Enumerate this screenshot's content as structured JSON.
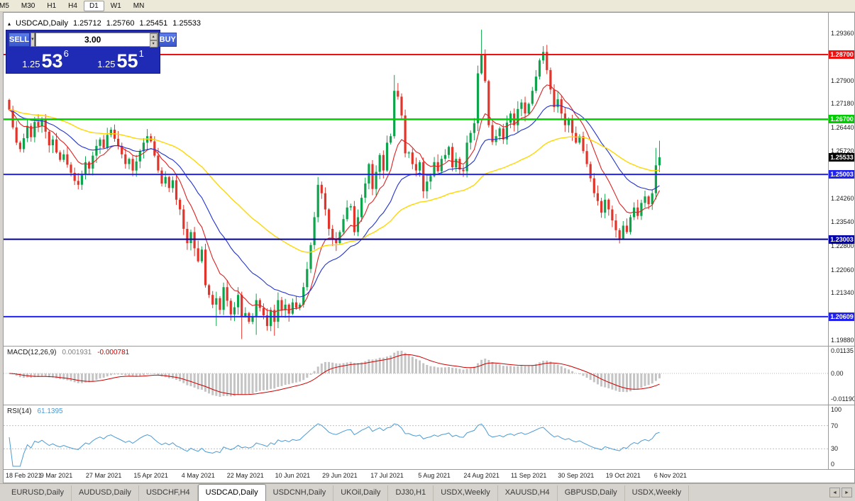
{
  "window": {
    "marker": "▴",
    "symbol": "USDCAD,Daily",
    "ohlc": {
      "open": "1.25712",
      "high": "1.25760",
      "low": "1.25451",
      "close": "1.25533"
    }
  },
  "toolbar": {
    "timeframes": [
      "M5",
      "M30",
      "H1",
      "H4",
      "D1",
      "W1",
      "MN"
    ],
    "active": "D1"
  },
  "trade_panel": {
    "sell_label": "SELL",
    "buy_label": "BUY",
    "volume": "3.00",
    "bid": {
      "prefix": "1.25",
      "big": "53",
      "sup": "6"
    },
    "ask": {
      "prefix": "1.25",
      "big": "55",
      "sup": "1"
    },
    "dropdown_icon": "▾",
    "spinner_up_icon": "▴",
    "spinner_down_icon": "▾"
  },
  "price_axis": {
    "labels": [
      {
        "text": "1.29360",
        "price": 1.2936
      },
      {
        "text": "1.27900",
        "price": 1.279
      },
      {
        "text": "1.27180",
        "price": 1.2718
      },
      {
        "text": "1.26440",
        "price": 1.2644
      },
      {
        "text": "1.25720",
        "price": 1.2572
      },
      {
        "text": "1.24260",
        "price": 1.2426
      },
      {
        "text": "1.23540",
        "price": 1.2354
      },
      {
        "text": "1.22800",
        "price": 1.228
      },
      {
        "text": "1.22060",
        "price": 1.2206
      },
      {
        "text": "1.21340",
        "price": 1.2134
      },
      {
        "text": "1.19880",
        "price": 1.1988
      }
    ]
  },
  "levels": [
    {
      "price": 1.287,
      "label": "1.28700",
      "color": "#ee1111",
      "width": 2
    },
    {
      "price": 1.267,
      "label": "1.26700",
      "color": "#00cc00",
      "width": 2.5
    },
    {
      "price": 1.25,
      "label": "1.25003",
      "color": "#2222ee",
      "width": 2
    },
    {
      "price": 1.23,
      "label": "1.23003",
      "color": "#0000aa",
      "width": 2
    },
    {
      "price": 1.20609,
      "label": "1.20609",
      "color": "#2222ee",
      "width": 2
    }
  ],
  "current_price": {
    "value": 1.25533,
    "label": "1.25533",
    "badge_color": "#000000"
  },
  "indicators": {
    "macd": {
      "name": "MACD(12,26,9)",
      "value1": "0.001931",
      "value2": "-0.000781",
      "axis": [
        "0.01135",
        "0.00",
        "-0.01190"
      ],
      "fast": 12,
      "slow": 26,
      "signal_period": 9,
      "histogram_color": "#c4c4c4",
      "signal_color": "#cc0000"
    },
    "rsi": {
      "name": "RSI(14)",
      "value": "61.1395",
      "axis": [
        "100",
        "70",
        "30",
        "0"
      ],
      "period": 14,
      "levels": [
        70,
        30
      ],
      "line_color": "#4a9bd4"
    }
  },
  "chart_data": {
    "type": "candlestick",
    "symbol": "USDCAD",
    "timeframe": "Daily",
    "ylim": [
      1.1971,
      1.2999
    ],
    "first_open": 1.273,
    "closes": [
      1.27,
      1.2645,
      1.2598,
      1.2578,
      1.2612,
      1.265,
      1.2615,
      1.2662,
      1.2648,
      1.2668,
      1.2632,
      1.259,
      1.2608,
      1.2568,
      1.2545,
      1.2562,
      1.253,
      1.2505,
      1.248,
      1.2468,
      1.2502,
      1.2538,
      1.2518,
      1.2558,
      1.2588,
      1.2608,
      1.2582,
      1.2622,
      1.2638,
      1.261,
      1.2588,
      1.2562,
      1.2532,
      1.2548,
      1.2512,
      1.254,
      1.2572,
      1.2598,
      1.2618,
      1.2602,
      1.2558,
      1.2512,
      1.2472,
      1.2492,
      1.2458,
      1.2482,
      1.2422,
      1.2392,
      1.2332,
      1.2288,
      1.2322,
      1.2272,
      1.2232,
      1.2268,
      1.2158,
      1.2128,
      1.2098,
      1.2118,
      1.2082,
      1.2152,
      1.211,
      1.2068,
      1.209,
      1.2128,
      1.2062,
      1.2072,
      1.2045,
      1.206,
      1.2112,
      1.2088,
      1.2065,
      1.2032,
      1.2082,
      1.2045,
      1.2112,
      1.208,
      1.2098,
      1.207,
      1.2105,
      1.2088,
      1.2098,
      1.2152,
      1.2208,
      1.2282,
      1.2368,
      1.2468,
      1.2442,
      1.2392,
      1.2332,
      1.2302,
      1.2288,
      1.2322,
      1.2362,
      1.2398,
      1.2402,
      1.2322,
      1.2368,
      1.2428,
      1.2472,
      1.2532,
      1.2455,
      1.2508,
      1.256,
      1.2512,
      1.2598,
      1.2618,
      1.2758,
      1.274,
      1.2682,
      1.2565,
      1.2568,
      1.2532,
      1.2512,
      1.2538,
      1.2448,
      1.2478,
      1.2495,
      1.2538,
      1.251,
      1.2548,
      1.256,
      1.2585,
      1.2522,
      1.2548,
      1.2515,
      1.251,
      1.2598,
      1.2628,
      1.2658,
      1.2812,
      1.2868,
      1.2788,
      1.2652,
      1.26,
      1.2618,
      1.2642,
      1.2608,
      1.266,
      1.2688,
      1.2652,
      1.2702,
      1.2722,
      1.2688,
      1.2718,
      1.2758,
      1.2802,
      1.2852,
      1.2878,
      1.2822,
      1.2762,
      1.2708,
      1.2732,
      1.2688,
      1.2652,
      1.2672,
      1.2628,
      1.2598,
      1.2618,
      1.2572,
      1.2532,
      1.2488,
      1.2442,
      1.2418,
      1.2382,
      1.2422,
      1.2392,
      1.2358,
      1.2328,
      1.2302,
      1.2342,
      1.2322,
      1.2368,
      1.2398,
      1.2372,
      1.2412,
      1.2432,
      1.2408,
      1.2442,
      1.2528,
      1.2553
    ],
    "wick_overrides": {
      "57": {
        "low": 1.2032
      },
      "64": {
        "low": 1.1992
      },
      "68": {
        "low": 1.2005
      },
      "73": {
        "low": 1.2002
      },
      "106": {
        "high": 1.2807
      },
      "130": {
        "high": 1.2947
      },
      "147": {
        "high": 1.2896
      },
      "168": {
        "low": 1.2287
      },
      "178": {
        "high": 1.2582
      },
      "179": {
        "high": 1.2604
      }
    },
    "x_labels": [
      {
        "text": "18 Feb 2021",
        "index": 0
      },
      {
        "text": "9 Mar 2021",
        "index": 13
      },
      {
        "text": "27 Mar 2021",
        "index": 26
      },
      {
        "text": "15 Apr 2021",
        "index": 39
      },
      {
        "text": "4 May 2021",
        "index": 52
      },
      {
        "text": "22 May 2021",
        "index": 65
      },
      {
        "text": "10 Jun 2021",
        "index": 78
      },
      {
        "text": "29 Jun 2021",
        "index": 91
      },
      {
        "text": "17 Jul 2021",
        "index": 104
      },
      {
        "text": "5 Aug 2021",
        "index": 117
      },
      {
        "text": "24 Aug 2021",
        "index": 130
      },
      {
        "text": "11 Sep 2021",
        "index": 143
      },
      {
        "text": "30 Sep 2021",
        "index": 156
      },
      {
        "text": "19 Oct 2021",
        "index": 169
      },
      {
        "text": "6 Nov 2021",
        "index": 182
      }
    ],
    "colors": {
      "up": "#0ea44c",
      "down": "#e0352b"
    },
    "moving_averages": [
      {
        "period": 10,
        "color": "#dd2222",
        "width": 1.1
      },
      {
        "period": 24,
        "color": "#2233cc",
        "width": 1.1
      },
      {
        "period": 60,
        "color": "#ffd700",
        "width": 1.4
      }
    ]
  },
  "bottom_tabs": {
    "tabs": [
      "EURUSD,Daily",
      "AUDUSD,Daily",
      "USDCHF,H4",
      "USDCAD,Daily",
      "USDCNH,Daily",
      "UKOil,Daily",
      "DJ30,H1",
      "USDX,Weekly",
      "XAUUSD,H4",
      "GBPUSD,Daily",
      "USDX,Weekly"
    ],
    "active_index": 3,
    "scroll_left_icon": "◄",
    "scroll_right_icon": "►"
  }
}
